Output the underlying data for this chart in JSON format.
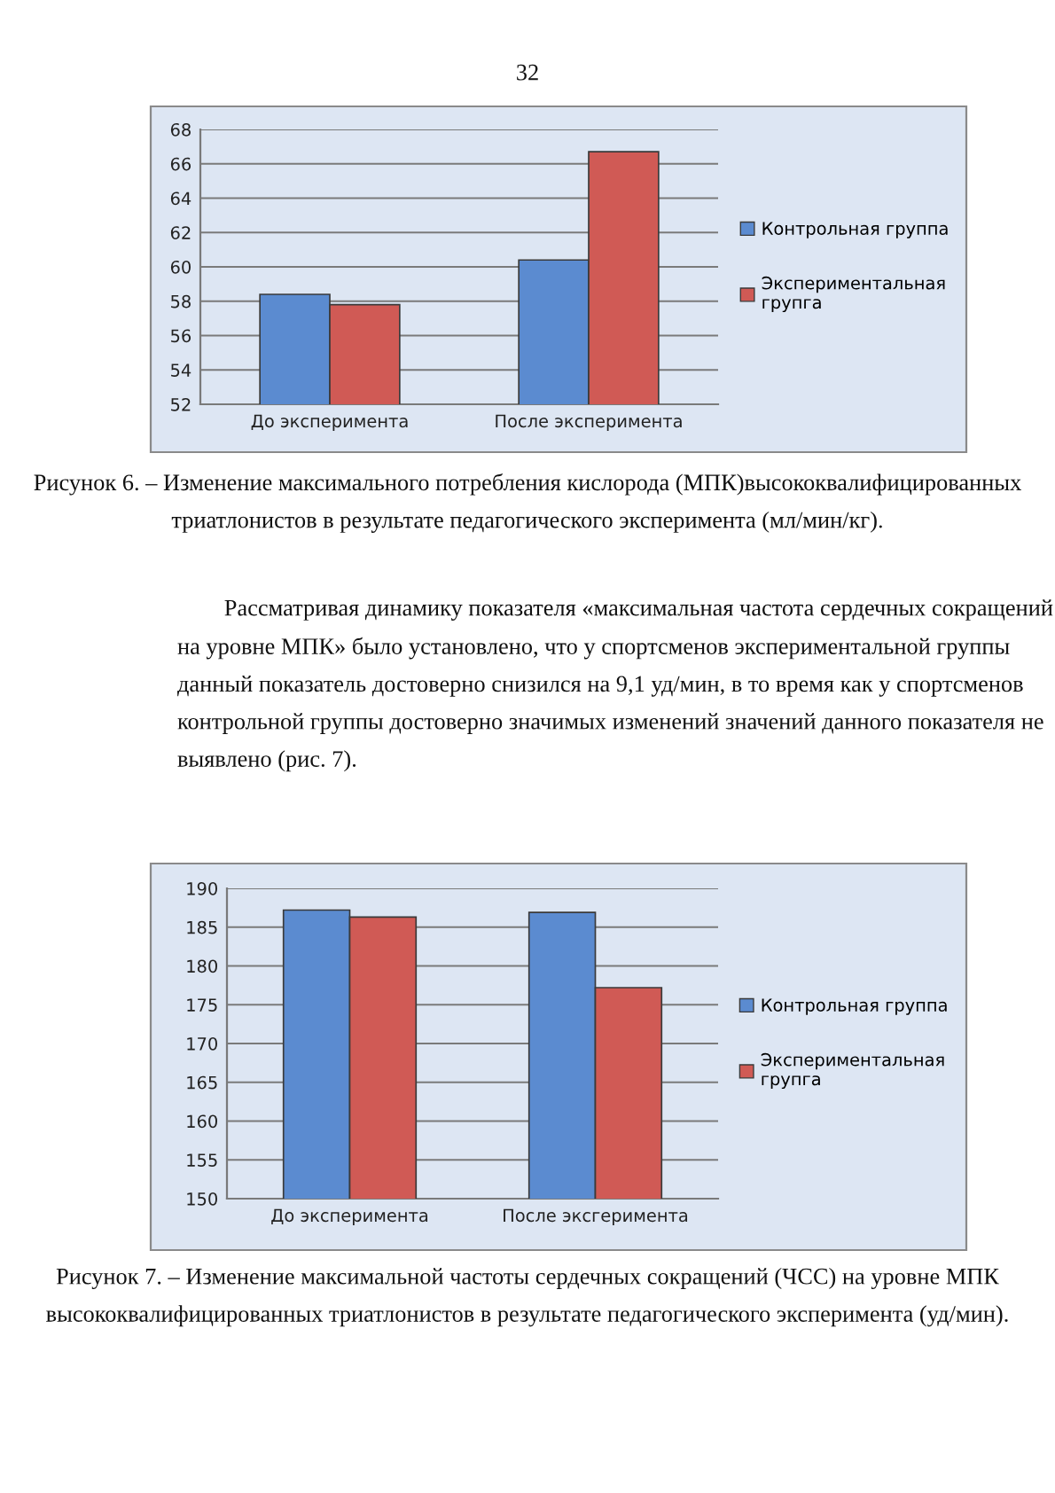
{
  "chart_data": [
    {
      "type": "bar",
      "categories": [
        "До эксперимента",
        "После эксперимента"
      ],
      "series": [
        {
          "name": "Контрольная группа",
          "color": "#5b8bd0",
          "values": [
            58.4,
            60.4
          ]
        },
        {
          "name": "Экспериментальная групга",
          "color": "#d05a55",
          "values": [
            57.8,
            66.7
          ]
        }
      ],
      "ylim": [
        52,
        68
      ],
      "yticks": [
        52,
        54,
        56,
        58,
        60,
        62,
        64,
        66,
        68
      ],
      "grid": "y",
      "legend": "right",
      "annotations": [
        "32",
        "Рисунок 6. – Изменение максимального потребления кислорода (МПК)высококвалифицированных триатлонистов в результате педагогического эксперимента (мл/мин/кг).",
        "Рассматривая динамику показателя «максимальная частота сердечных сокращений на уровне МПК» было установлено, что у спортсменов экспериментальной группы данный показатель достоверно снизился на 9,1 уд/мин, в то время как у спортсменов контрольной группы достоверно значимых изменений значений данного показателя не выявлено (рис. 7)."
      ]
    },
    {
      "type": "bar",
      "categories": [
        "До эксперимента",
        "После эксгеримента"
      ],
      "series": [
        {
          "name": "Контрольная группа",
          "color": "#5b8bd0",
          "values": [
            187.2,
            186.9
          ]
        },
        {
          "name": "Экспериментальная групга",
          "color": "#d05a55",
          "values": [
            186.3,
            177.2
          ]
        }
      ],
      "ylim": [
        150,
        190
      ],
      "yticks": [
        150,
        155,
        160,
        165,
        170,
        175,
        180,
        185,
        190
      ],
      "grid": "y",
      "legend": "right",
      "annotations": [
        "Рисунок 7. – Изменение максимальной частоты сердечных сокращений (ЧСС) на уровне МПК высококвалифицированных триатлонистов в результате педагогического эксперимента (уд/мин)."
      ]
    }
  ]
}
